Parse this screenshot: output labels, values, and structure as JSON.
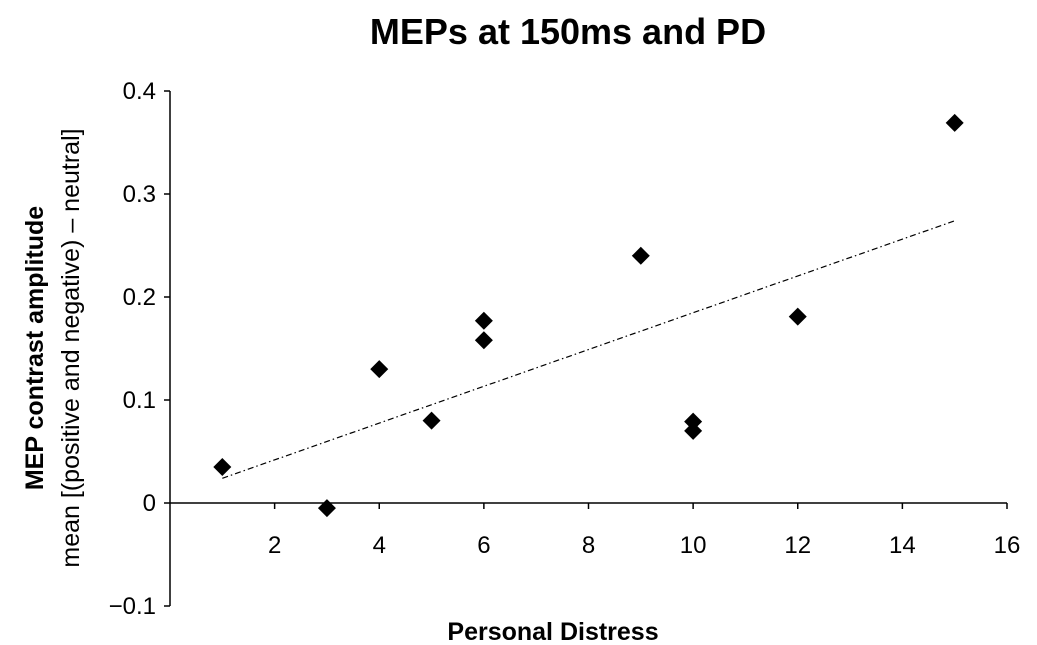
{
  "chart_data": {
    "type": "scatter",
    "title": "MEPs at 150ms and PD",
    "xlabel": "Personal Distress",
    "ylabel": "MEP contrast amplitude",
    "ylabel_sub": "mean [(positive and negative) – neutral]",
    "xlim": [
      0,
      16
    ],
    "ylim": [
      -0.1,
      0.4
    ],
    "x_ticks": [
      2,
      4,
      6,
      8,
      10,
      12,
      14,
      16
    ],
    "x_tick_labels": [
      "2",
      "4",
      "6",
      "8",
      "10",
      "12",
      "14",
      "16"
    ],
    "y_ticks": [
      -0.1,
      0,
      0.1,
      0.2,
      0.3,
      0.4
    ],
    "y_tick_labels": [
      "−0.1",
      "0",
      "0.1",
      "0.2",
      "0.3",
      "0.4"
    ],
    "grid": false,
    "legend": "none",
    "marker": "diamond",
    "marker_color": "#000000",
    "series": [
      {
        "x": [
          1,
          3,
          4,
          5,
          6,
          6,
          9,
          10,
          10,
          12,
          15
        ],
        "y": [
          0.035,
          -0.005,
          0.13,
          0.08,
          0.177,
          0.158,
          0.24,
          0.079,
          0.07,
          0.181,
          0.369
        ]
      }
    ],
    "trendline": {
      "type": "linear",
      "style": "dash-dot",
      "x": [
        1,
        15
      ],
      "y": [
        0.024,
        0.274
      ]
    }
  }
}
